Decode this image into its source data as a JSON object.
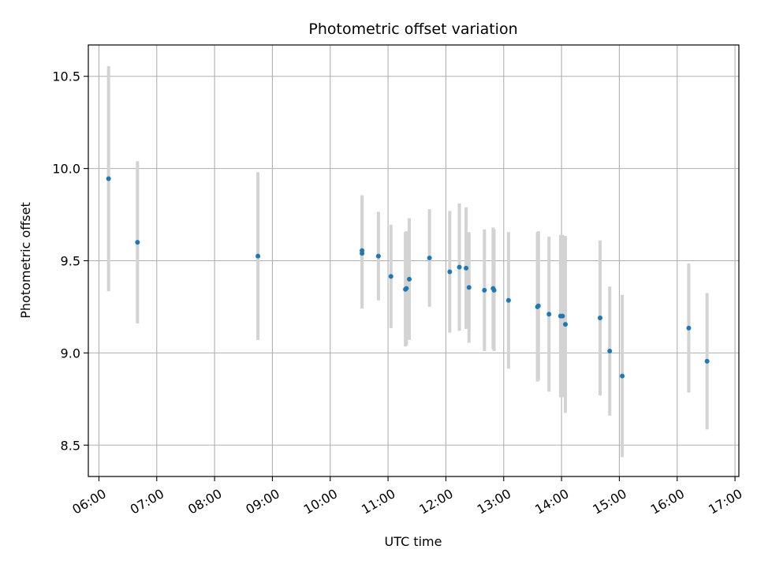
{
  "chart_data": {
    "type": "scatter",
    "title": "Photometric offset variation",
    "xlabel": "UTC time",
    "ylabel": "Photometric offset",
    "x_ticks": [
      "06:00",
      "07:00",
      "08:00",
      "09:00",
      "10:00",
      "11:00",
      "12:00",
      "13:00",
      "14:00",
      "15:00",
      "16:00",
      "17:00"
    ],
    "y_ticks": [
      "8.5",
      "9.0",
      "9.5",
      "10.0",
      "10.5"
    ],
    "xlim": [
      "05:49",
      "17:04"
    ],
    "ylim": [
      8.33,
      10.67
    ],
    "grid": true,
    "point_color": "#1f77b4",
    "errorbar_color": "#d3d3d3",
    "points": [
      {
        "x": "06:10",
        "y": 9.945,
        "err": 0.61
      },
      {
        "x": "06:40",
        "y": 9.6,
        "err": 0.44
      },
      {
        "x": "08:45",
        "y": 9.525,
        "err": 0.455
      },
      {
        "x": "10:33",
        "y": 9.555,
        "err": 0.3
      },
      {
        "x": "10:33",
        "y": 9.54,
        "err": 0.3
      },
      {
        "x": "10:50",
        "y": 9.525,
        "err": 0.24
      },
      {
        "x": "11:03",
        "y": 9.415,
        "err": 0.28
      },
      {
        "x": "11:18",
        "y": 9.345,
        "err": 0.31
      },
      {
        "x": "11:19",
        "y": 9.35,
        "err": 0.31
      },
      {
        "x": "11:22",
        "y": 9.4,
        "err": 0.33
      },
      {
        "x": "11:43",
        "y": 9.515,
        "err": 0.265
      },
      {
        "x": "12:04",
        "y": 9.44,
        "err": 0.33
      },
      {
        "x": "12:14",
        "y": 9.465,
        "err": 0.345
      },
      {
        "x": "12:21",
        "y": 9.46,
        "err": 0.33
      },
      {
        "x": "12:24",
        "y": 9.355,
        "err": 0.3
      },
      {
        "x": "12:40",
        "y": 9.34,
        "err": 0.33
      },
      {
        "x": "12:49",
        "y": 9.35,
        "err": 0.33
      },
      {
        "x": "12:50",
        "y": 9.34,
        "err": 0.33
      },
      {
        "x": "13:05",
        "y": 9.285,
        "err": 0.37
      },
      {
        "x": "13:35",
        "y": 9.25,
        "err": 0.405
      },
      {
        "x": "13:36",
        "y": 9.255,
        "err": 0.405
      },
      {
        "x": "13:47",
        "y": 9.21,
        "err": 0.42
      },
      {
        "x": "13:59",
        "y": 9.2,
        "err": 0.44
      },
      {
        "x": "14:01",
        "y": 9.2,
        "err": 0.44
      },
      {
        "x": "14:04",
        "y": 9.155,
        "err": 0.48
      },
      {
        "x": "14:40",
        "y": 9.19,
        "err": 0.42
      },
      {
        "x": "14:50",
        "y": 9.01,
        "err": 0.35
      },
      {
        "x": "15:03",
        "y": 8.875,
        "err": 0.44
      },
      {
        "x": "16:12",
        "y": 9.135,
        "err": 0.35
      },
      {
        "x": "16:31",
        "y": 8.955,
        "err": 0.37
      }
    ]
  }
}
